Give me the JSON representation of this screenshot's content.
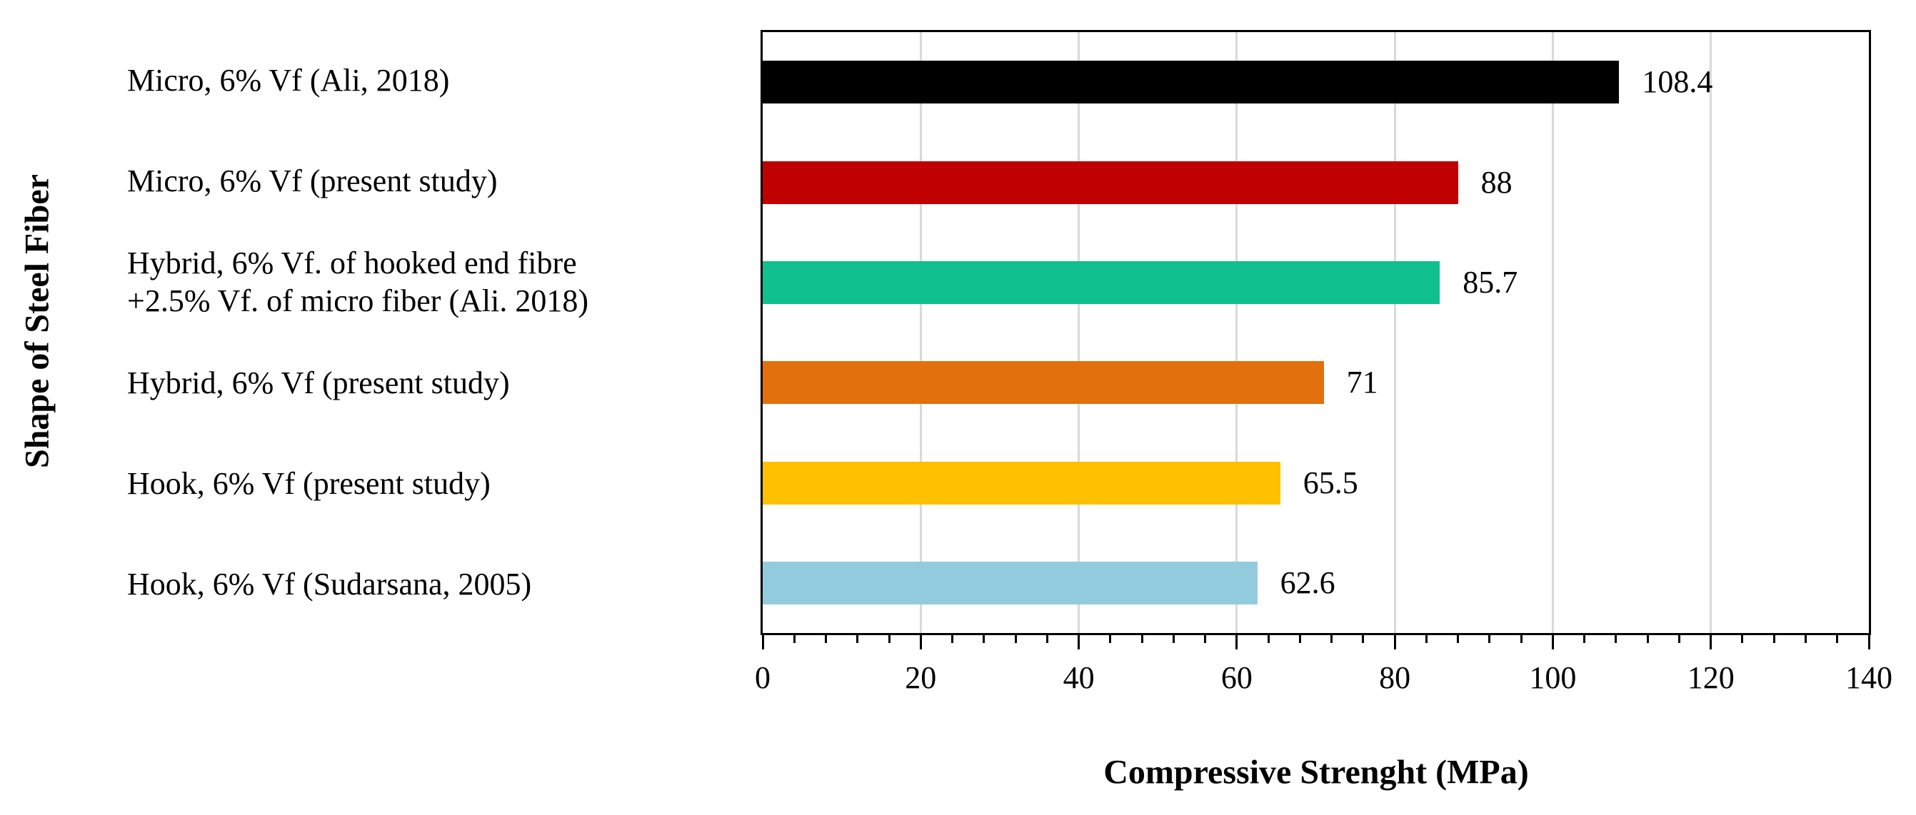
{
  "chart_data": {
    "type": "bar",
    "orientation": "horizontal",
    "xlabel": "Compressive Strenght (MPa)",
    "ylabel": "Shape of Steel Fiber",
    "xlim": [
      0,
      140
    ],
    "x_ticks": [
      0,
      20,
      40,
      60,
      80,
      100,
      120,
      140
    ],
    "minor_tick_unit": 4,
    "grid": "vertical major gridlines only",
    "legend": "none",
    "categories": [
      {
        "lines": [
          "Micro, 6% Vf (Ali, 2018)"
        ]
      },
      {
        "lines": [
          "Micro, 6% Vf (present study)"
        ]
      },
      {
        "lines": [
          "Hybrid, 6% Vf. of hooked end fibre",
          "+2.5% Vf. of micro fiber (Ali. 2018)"
        ]
      },
      {
        "lines": [
          "Hybrid, 6% Vf (present study)"
        ]
      },
      {
        "lines": [
          "Hook, 6% Vf (present study)"
        ]
      },
      {
        "lines": [
          "Hook, 6% Vf (Sudarsana, 2005)"
        ]
      }
    ],
    "values": [
      108.4,
      88,
      85.7,
      71,
      65.5,
      62.6
    ],
    "data_labels": [
      "108.4",
      "88",
      "85.7",
      "71",
      "65.5",
      "62.6"
    ],
    "bar_colors": [
      "#000000",
      "#c00000",
      "#0fc08e",
      "#e2700d",
      "#ffc000",
      "#93cbde"
    ],
    "colors": {
      "gridline": "#d9d9d9",
      "axis": "#000000",
      "background": "#ffffff",
      "text": "#000000"
    }
  }
}
